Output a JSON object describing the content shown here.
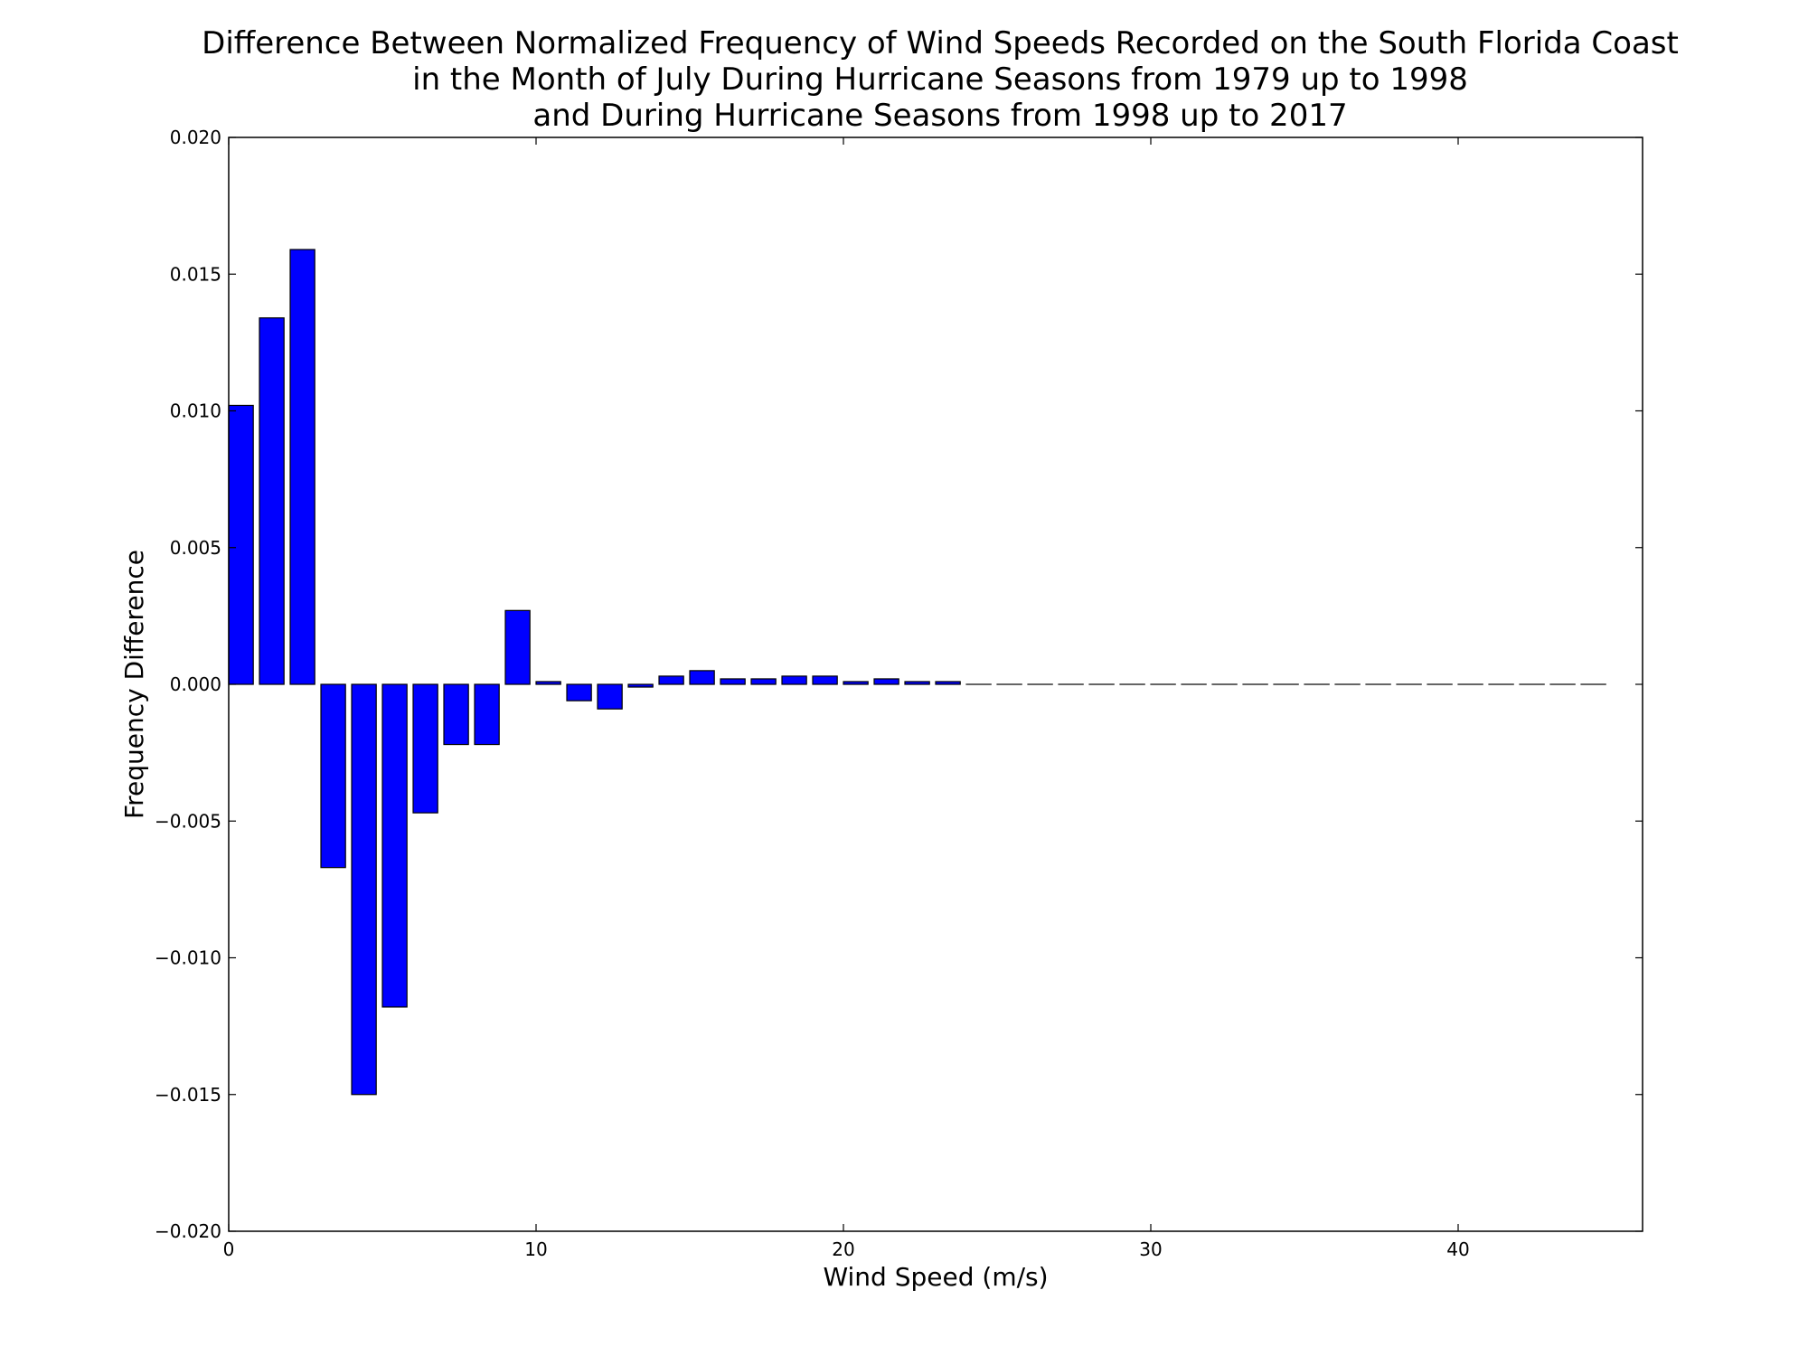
{
  "chart_data": {
    "type": "bar",
    "title_lines": [
      "Difference Between Normalized Frequency of Wind Speeds Recorded on the South Florida Coast",
      "in the Month of July During Hurricane Seasons from 1979 up to 1998",
      "and During Hurricane Seasons from 1998 up to 2017"
    ],
    "xlabel": "Wind Speed (m/s)",
    "ylabel": "Frequency Difference",
    "xlim": [
      0,
      46
    ],
    "ylim": [
      -0.02,
      0.02
    ],
    "x_ticks": [
      0,
      10,
      20,
      30,
      40
    ],
    "x_tick_labels": [
      "0",
      "10",
      "20",
      "30",
      "40"
    ],
    "y_ticks": [
      -0.02,
      -0.015,
      -0.01,
      -0.005,
      0.0,
      0.005,
      0.01,
      0.015,
      0.02
    ],
    "y_tick_labels": [
      "−0.020",
      "−0.015",
      "−0.010",
      "−0.005",
      "0.000",
      "0.005",
      "0.010",
      "0.015",
      "0.020"
    ],
    "bar_width": 0.8,
    "bar_color": "#0000ff",
    "edge_color": "#000000",
    "grid": false,
    "x": [
      0,
      1,
      2,
      3,
      4,
      5,
      6,
      7,
      8,
      9,
      10,
      11,
      12,
      13,
      14,
      15,
      16,
      17,
      18,
      19,
      20,
      21,
      22,
      23,
      24,
      25,
      26,
      27,
      28,
      29,
      30,
      31,
      32,
      33,
      34,
      35,
      36,
      37,
      38,
      39,
      40,
      41,
      42,
      43,
      44
    ],
    "values": [
      0.0102,
      0.0134,
      0.0159,
      -0.0067,
      -0.015,
      -0.0118,
      -0.0047,
      -0.0022,
      -0.0022,
      0.0027,
      0.0001,
      -0.0006,
      -0.0009,
      -0.0001,
      0.0003,
      0.0005,
      0.0002,
      0.0002,
      0.0003,
      0.0003,
      0.0001,
      0.0002,
      0.0001,
      0.0001,
      0,
      0,
      0,
      0,
      0,
      0,
      0,
      0,
      0,
      0,
      0,
      0,
      0,
      0,
      0,
      0,
      0,
      0,
      0,
      0,
      0
    ]
  }
}
